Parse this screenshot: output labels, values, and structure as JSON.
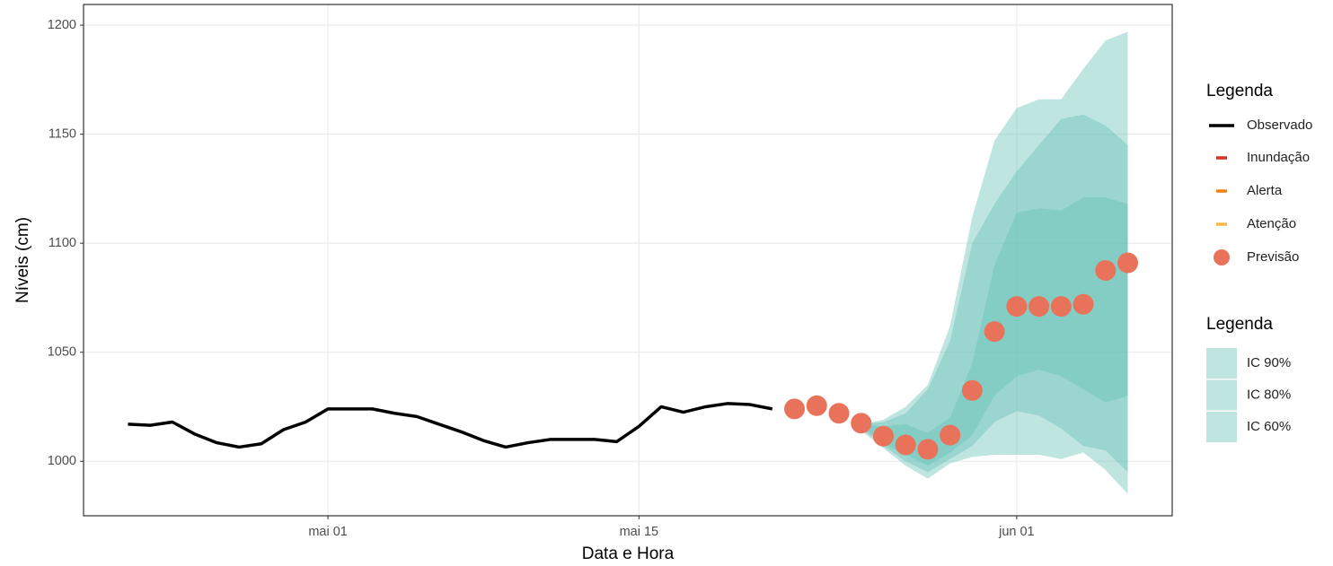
{
  "chart_data": {
    "type": "line",
    "x_label": "Data e Hora",
    "y_label": "Níveis (cm)",
    "xlim": [
      "04-20",
      "06-08"
    ],
    "xticks": [
      {
        "value": "05-01",
        "label": "mai 01"
      },
      {
        "value": "05-15",
        "label": "mai 15"
      },
      {
        "value": "06-01",
        "label": "jun 01"
      }
    ],
    "ylim": [
      975,
      1209.5
    ],
    "yticks": [
      1000,
      1050,
      1100,
      1150,
      1200
    ],
    "grid": true,
    "legend_titles": [
      "Legenda",
      "Legenda"
    ],
    "series": [
      {
        "name": "Observado",
        "type": "line",
        "color": "#000000",
        "x": [
          "04-22",
          "04-23",
          "04-24",
          "04-25",
          "04-26",
          "04-27",
          "04-28",
          "04-29",
          "04-30",
          "05-01",
          "05-02",
          "05-03",
          "05-04",
          "05-05",
          "05-06",
          "05-07",
          "05-08",
          "05-09",
          "05-10",
          "05-11",
          "05-12",
          "05-13",
          "05-14",
          "05-15",
          "05-16",
          "05-17",
          "05-18",
          "05-19",
          "05-20",
          "05-21"
        ],
        "values": [
          1017,
          1016.5,
          1018,
          1012.5,
          1008.5,
          1006.5,
          1008,
          1014.5,
          1018,
          1024,
          1024,
          1024,
          1022,
          1020.5,
          1017,
          1013.5,
          1009.5,
          1006.5,
          1008.5,
          1010,
          1010,
          1010,
          1009,
          1016,
          1025,
          1022.5,
          1025,
          1026.5,
          1026,
          1024
        ]
      },
      {
        "name": "Previsão",
        "type": "points",
        "color": "#e8735a",
        "x": [
          "05-22",
          "05-23",
          "05-24",
          "05-25",
          "05-26",
          "05-27",
          "05-28",
          "05-29",
          "05-30",
          "05-31",
          "06-01",
          "06-02",
          "06-03",
          "06-04",
          "06-05",
          "06-06"
        ],
        "values": [
          1024,
          1025.5,
          1022,
          1017.5,
          1011.5,
          1007.5,
          1005.5,
          1012,
          1032.5,
          1059.5,
          1071,
          1071,
          1071,
          1072,
          1087.5,
          1091
        ]
      }
    ],
    "reference_lines": [
      {
        "name": "Inundação",
        "color": "#d7301f"
      },
      {
        "name": "Alerta",
        "color": "#f57f17"
      },
      {
        "name": "Atenção",
        "color": "#fbb943"
      }
    ],
    "bands": [
      {
        "name": "IC 90%",
        "color": "#66c2b8",
        "opacity": 0.42,
        "x": [
          "05-25",
          "05-26",
          "05-27",
          "05-28",
          "05-29",
          "05-30",
          "05-31",
          "06-01",
          "06-02",
          "06-03",
          "06-04",
          "06-05",
          "06-06"
        ],
        "lower": [
          1014,
          1006,
          998,
          992,
          999,
          1002,
          1003,
          1003,
          1003,
          1001,
          1004,
          996,
          985
        ],
        "upper": [
          1017,
          1019,
          1025,
          1035,
          1062,
          1112,
          1147,
          1162,
          1166,
          1166,
          1180,
          1193,
          1197
        ]
      },
      {
        "name": "IC 80%",
        "color": "#66c2b8",
        "opacity": 0.42,
        "x": [
          "05-25",
          "05-26",
          "05-27",
          "05-28",
          "05-29",
          "05-30",
          "05-31",
          "06-01",
          "06-02",
          "06-03",
          "06-04",
          "06-05",
          "06-06"
        ],
        "lower": [
          1015,
          1007,
          1000,
          995,
          1001,
          1007,
          1018,
          1023,
          1021,
          1015,
          1007,
          1005,
          995
        ],
        "upper": [
          1017,
          1018,
          1022,
          1033,
          1055,
          1100,
          1118,
          1133,
          1145,
          1157,
          1159,
          1154,
          1145
        ]
      },
      {
        "name": "IC 60%",
        "color": "#66c2b8",
        "opacity": 0.42,
        "x": [
          "05-25",
          "05-26",
          "05-27",
          "05-28",
          "05-29",
          "05-30",
          "05-31",
          "06-01",
          "06-02",
          "06-03",
          "06-04",
          "06-05",
          "06-06"
        ],
        "lower": [
          1016,
          1008,
          1003,
          998,
          1004,
          1012,
          1030,
          1039,
          1042,
          1039,
          1033,
          1027,
          1030
        ],
        "upper": [
          1017,
          1016,
          1017,
          1013,
          1020,
          1045,
          1090,
          1114,
          1116,
          1115,
          1121,
          1121,
          1118
        ]
      }
    ]
  }
}
